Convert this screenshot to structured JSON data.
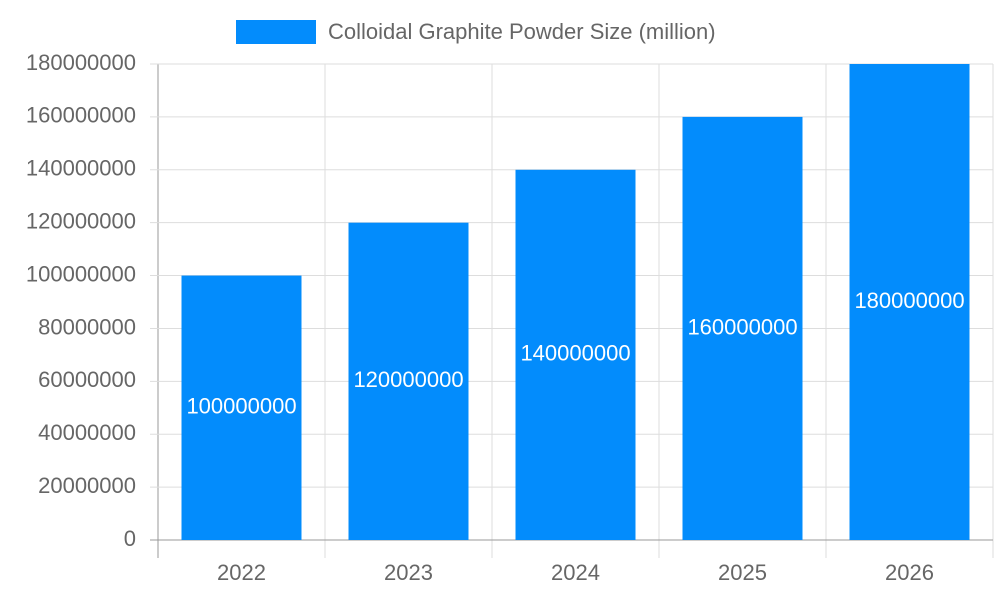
{
  "chart_data": {
    "type": "bar",
    "categories": [
      "2022",
      "2023",
      "2024",
      "2025",
      "2026"
    ],
    "series": [
      {
        "name": "Colloidal Graphite Powder Size (million)",
        "color": "#038cfc",
        "values": [
          100000000,
          120000000,
          140000000,
          160000000,
          180000000
        ]
      }
    ],
    "ylim": [
      0,
      180000000
    ],
    "yticks": [
      0,
      20000000,
      40000000,
      60000000,
      80000000,
      100000000,
      120000000,
      140000000,
      160000000,
      180000000
    ],
    "grid": true,
    "legend": "top",
    "data_labels": true
  }
}
